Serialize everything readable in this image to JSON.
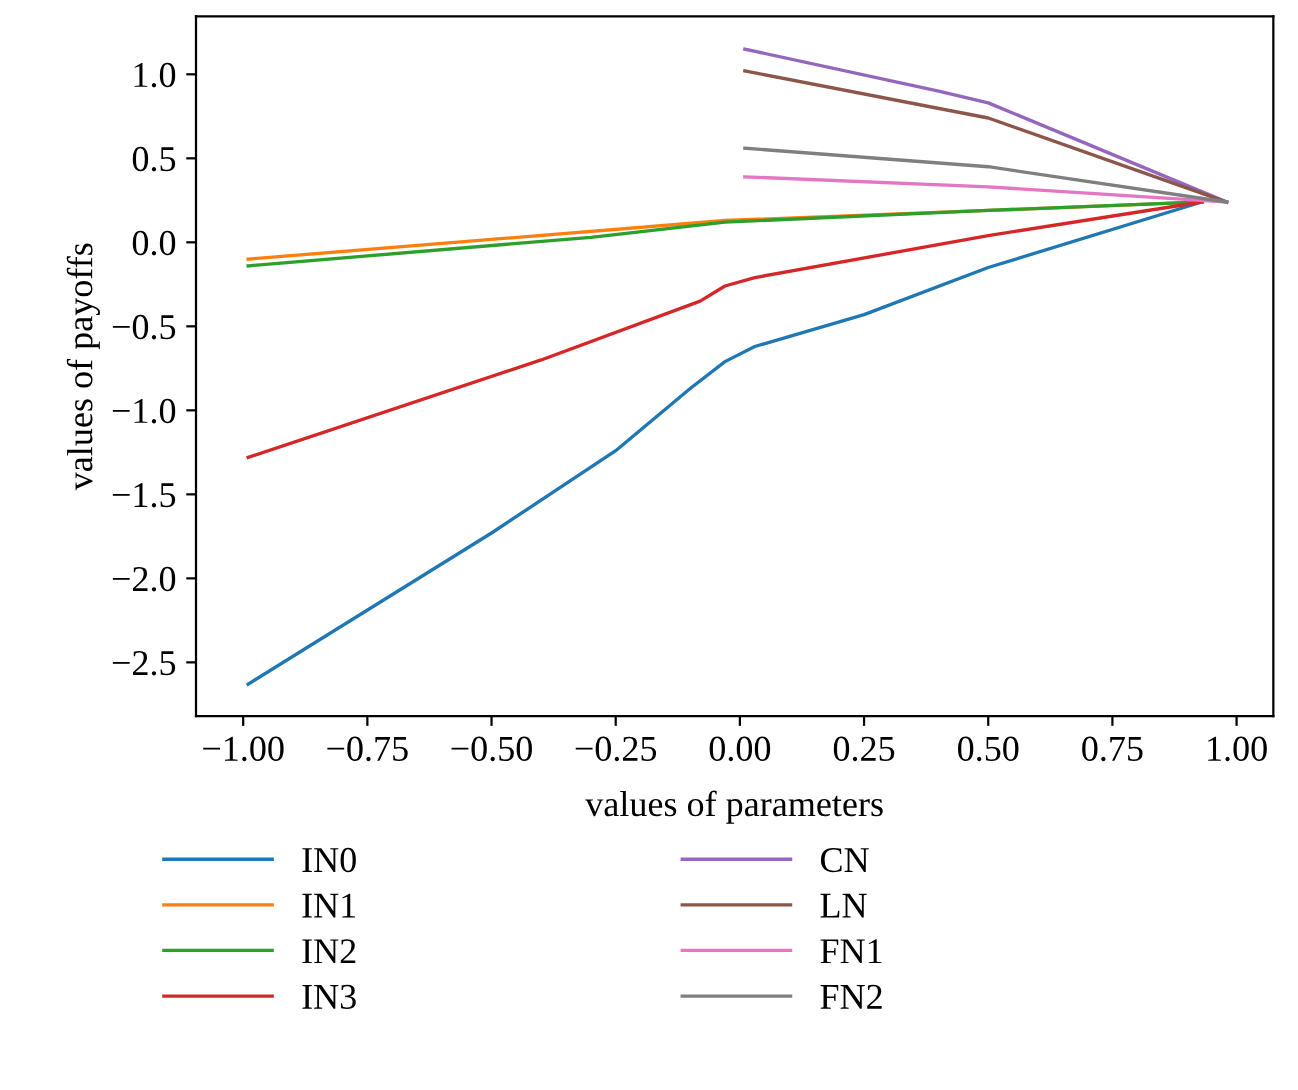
{
  "chart_data": {
    "type": "line",
    "xlabel": "values of parameters",
    "ylabel": "values of payoffs",
    "xlim": [
      -1.095,
      1.074
    ],
    "ylim": [
      -2.82,
      1.345
    ],
    "xticks": [
      {
        "value": -1,
        "label": "−1.00"
      },
      {
        "value": -0.75,
        "label": "−0.75"
      },
      {
        "value": -0.5,
        "label": "−0.50"
      },
      {
        "value": -0.25,
        "label": "−0.25"
      },
      {
        "value": 0,
        "label": "0.00"
      },
      {
        "value": 0.25,
        "label": "0.25"
      },
      {
        "value": 0.5,
        "label": "0.50"
      },
      {
        "value": 0.75,
        "label": "0.75"
      },
      {
        "value": 1,
        "label": "1.00"
      }
    ],
    "yticks": [
      {
        "value": -2.5,
        "label": "−2.5"
      },
      {
        "value": -2,
        "label": "−2.0"
      },
      {
        "value": -1.5,
        "label": "−1.5"
      },
      {
        "value": -1,
        "label": "−1.0"
      },
      {
        "value": -0.5,
        "label": "−0.5"
      },
      {
        "value": 0,
        "label": "0.0"
      },
      {
        "value": 0.5,
        "label": "0.5"
      },
      {
        "value": 1,
        "label": "1.0"
      }
    ],
    "grid": false,
    "legend": "bottom",
    "marker": "none",
    "line_style": "solid",
    "series": [
      {
        "name": "IN0",
        "color": "#1f77b4",
        "x": [
          -0.99,
          -0.5,
          -0.25,
          -0.1,
          -0.03,
          0.03,
          0.25,
          0.5,
          0.93
        ],
        "values": [
          -2.63,
          -1.73,
          -1.24,
          -0.87,
          -0.71,
          -0.62,
          -0.43,
          -0.15,
          0.24
        ]
      },
      {
        "name": "IN1",
        "color": "#ff7f0e",
        "x": [
          -0.99,
          -0.03,
          0.5,
          0.93
        ],
        "values": [
          -0.1,
          0.13,
          0.19,
          0.24
        ]
      },
      {
        "name": "IN2",
        "color": "#2ca02c",
        "x": [
          -0.99,
          -0.3,
          -0.03,
          0.5,
          0.93
        ],
        "values": [
          -0.14,
          0.03,
          0.12,
          0.19,
          0.24
        ]
      },
      {
        "name": "IN3",
        "color": "#d62728",
        "x": [
          -0.99,
          -0.4,
          -0.08,
          -0.03,
          0.03,
          0.5,
          0.93
        ],
        "values": [
          -1.28,
          -0.7,
          -0.35,
          -0.26,
          -0.21,
          0.04,
          0.24
        ]
      },
      {
        "name": "CN",
        "color": "#9467bd",
        "x": [
          0.01,
          0.4,
          0.5,
          0.98
        ],
        "values": [
          1.15,
          0.9,
          0.83,
          0.24
        ]
      },
      {
        "name": "LN",
        "color": "#8c564b",
        "x": [
          0.01,
          0.5,
          0.98
        ],
        "values": [
          1.02,
          0.74,
          0.24
        ]
      },
      {
        "name": "FN1",
        "color": "#e377c2",
        "x": [
          0.01,
          0.5,
          0.98
        ],
        "values": [
          0.39,
          0.33,
          0.24
        ]
      },
      {
        "name": "FN2",
        "color": "#7f7f7f",
        "x": [
          0.01,
          0.5,
          0.98
        ],
        "values": [
          0.56,
          0.45,
          0.24
        ]
      }
    ]
  }
}
